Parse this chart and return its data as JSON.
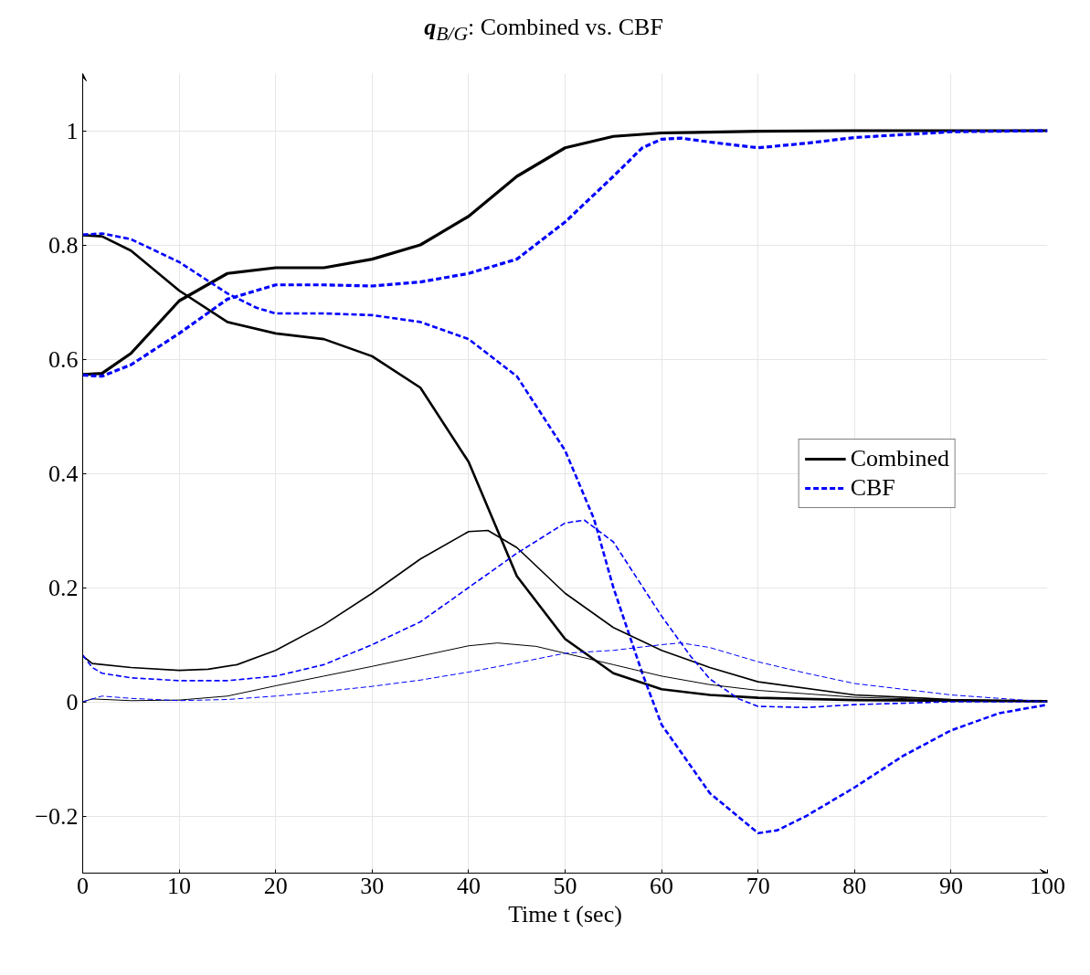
{
  "chart_data": {
    "type": "line",
    "title": "q$_{B/G}$: Combined vs. CBF",
    "xlabel": "Time t (sec)",
    "xlim": [
      0,
      100
    ],
    "ylim": [
      -0.3,
      1.1
    ],
    "xticks": [
      0,
      10,
      20,
      30,
      40,
      50,
      60,
      70,
      80,
      90,
      100
    ],
    "yticks": [
      {
        "value": -0.2,
        "label": "−0.2"
      },
      0,
      0.2,
      0.4,
      0.6,
      0.8,
      1
    ],
    "grid": true,
    "legend": "right",
    "marker": "none",
    "series": [
      {
        "name": "Combined",
        "color": "#000000",
        "line_style": "solid",
        "x": [
          0,
          2,
          5,
          10,
          15,
          20,
          25,
          30,
          35,
          40,
          45,
          50,
          55,
          60,
          70,
          80,
          90,
          100
        ],
        "values": [
          0.573,
          0.575,
          0.61,
          0.702,
          0.75,
          0.76,
          0.76,
          0.775,
          0.8,
          0.85,
          0.92,
          0.97,
          0.99,
          0.996,
          0.999,
          1,
          1,
          1
        ]
      },
      {
        "name": "CBF",
        "color": "#0000ff",
        "line_style": "dashed",
        "x": [
          0,
          2,
          5,
          10,
          15,
          20,
          25,
          30,
          35,
          40,
          45,
          50,
          55,
          58,
          60,
          62,
          65,
          70,
          75,
          80,
          90,
          100
        ],
        "values": [
          0.572,
          0.57,
          0.59,
          0.645,
          0.705,
          0.73,
          0.73,
          0.728,
          0.735,
          0.75,
          0.775,
          0.84,
          0.92,
          0.97,
          0.985,
          0.987,
          0.98,
          0.97,
          0.978,
          0.988,
          0.998,
          1
        ]
      },
      {
        "color": "#000000",
        "line_style": "solid",
        "x": [
          0,
          2,
          5,
          10,
          15,
          20,
          25,
          30,
          35,
          40,
          43,
          45,
          50,
          55,
          60,
          65,
          70,
          80,
          100
        ],
        "values": [
          0.817,
          0.815,
          0.79,
          0.72,
          0.665,
          0.645,
          0.635,
          0.605,
          0.55,
          0.42,
          0.3,
          0.22,
          0.11,
          0.05,
          0.022,
          0.012,
          0.007,
          0.003,
          0.001
        ]
      },
      {
        "color": "#0000ff",
        "line_style": "dashed",
        "x": [
          0,
          2,
          5,
          10,
          15,
          18,
          20,
          25,
          30,
          35,
          40,
          45,
          50,
          53,
          55,
          58,
          60,
          65,
          70,
          72,
          75,
          80,
          85,
          90,
          95,
          100
        ],
        "values": [
          0.818,
          0.82,
          0.81,
          0.77,
          0.715,
          0.69,
          0.68,
          0.68,
          0.677,
          0.665,
          0.635,
          0.57,
          0.44,
          0.32,
          0.2,
          0.05,
          -0.04,
          -0.16,
          -0.23,
          -0.225,
          -0.2,
          -0.15,
          -0.095,
          -0.05,
          -0.02,
          -0.005
        ]
      },
      {
        "color": "#000000",
        "line_style": "solid",
        "x": [
          0,
          1,
          5,
          10,
          13,
          16,
          20,
          25,
          30,
          35,
          40,
          42,
          45,
          50,
          55,
          60,
          65,
          70,
          80,
          90,
          100
        ],
        "values": [
          0.08,
          0.067,
          0.06,
          0.055,
          0.057,
          0.065,
          0.09,
          0.135,
          0.19,
          0.25,
          0.298,
          0.3,
          0.27,
          0.19,
          0.13,
          0.09,
          0.06,
          0.035,
          0.012,
          0.004,
          0.001
        ]
      },
      {
        "color": "#0000ff",
        "line_style": "dashed",
        "x": [
          0,
          1,
          2,
          5,
          10,
          15,
          20,
          25,
          30,
          35,
          40,
          45,
          50,
          52,
          55,
          60,
          63,
          65,
          68,
          70,
          75,
          80,
          90,
          100
        ],
        "values": [
          0.082,
          0.06,
          0.05,
          0.042,
          0.037,
          0.037,
          0.045,
          0.065,
          0.1,
          0.14,
          0.2,
          0.26,
          0.313,
          0.318,
          0.28,
          0.15,
          0.08,
          0.04,
          0.005,
          -0.008,
          -0.01,
          -0.005,
          0.0,
          0
        ]
      },
      {
        "color": "#000000",
        "line_style": "solid",
        "x": [
          0,
          1,
          5,
          10,
          15,
          20,
          25,
          30,
          35,
          40,
          43,
          47,
          50,
          55,
          60,
          65,
          70,
          80,
          90,
          100
        ],
        "values": [
          0,
          0.005,
          0.002,
          0.003,
          0.01,
          0.028,
          0.045,
          0.062,
          0.08,
          0.098,
          0.103,
          0.097,
          0.085,
          0.065,
          0.045,
          0.03,
          0.02,
          0.008,
          0.003,
          0
        ]
      },
      {
        "color": "#0000ff",
        "line_style": "dashed",
        "x": [
          0,
          2,
          5,
          10,
          15,
          20,
          25,
          30,
          35,
          40,
          45,
          50,
          55,
          60,
          62,
          65,
          70,
          75,
          80,
          90,
          100
        ],
        "values": [
          0,
          0.01,
          0.006,
          0.002,
          0.004,
          0.01,
          0.018,
          0.027,
          0.038,
          0.052,
          0.068,
          0.085,
          0.09,
          0.1,
          0.103,
          0.095,
          0.07,
          0.05,
          0.032,
          0.012,
          0
        ]
      }
    ]
  }
}
